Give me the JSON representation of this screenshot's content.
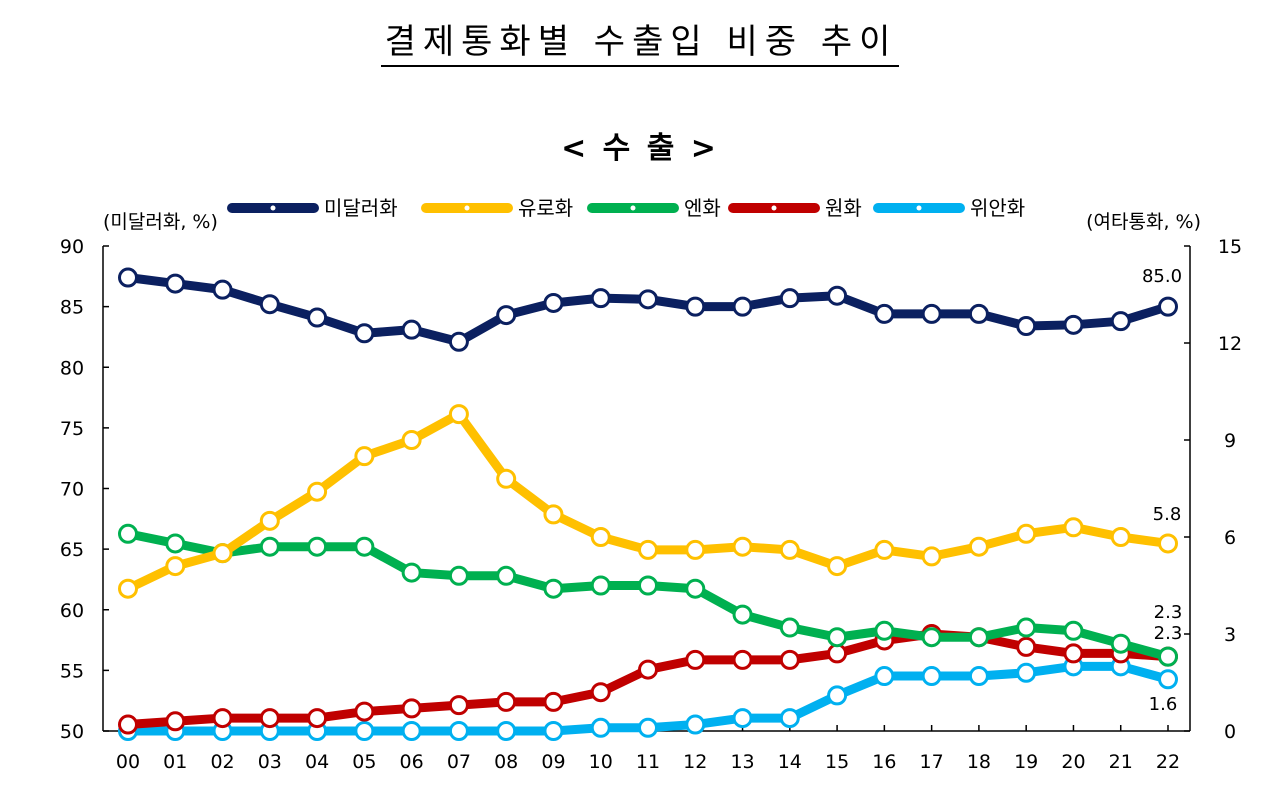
{
  "title": "결제통화별 수출입 비중 추이",
  "subtitle": "< 수   출 >",
  "chart_data": {
    "type": "line",
    "categories": [
      "00",
      "01",
      "02",
      "03",
      "04",
      "05",
      "06",
      "07",
      "08",
      "09",
      "10",
      "11",
      "12",
      "13",
      "14",
      "15",
      "16",
      "17",
      "18",
      "19",
      "20",
      "21",
      "22"
    ],
    "left_axis": {
      "label": "(미달러화, %)",
      "ylim": [
        50,
        90
      ],
      "ticks": [
        50,
        55,
        60,
        65,
        70,
        75,
        80,
        85,
        90
      ]
    },
    "right_axis": {
      "label": "(여타통화, %)",
      "ylim": [
        0,
        15
      ],
      "ticks": [
        0,
        3,
        6,
        9,
        12,
        15
      ]
    },
    "legend_position": "top-center",
    "grid": false,
    "series": [
      {
        "name": "미달러화",
        "axis": "left",
        "color": "#0b2060",
        "values": [
          87.4,
          86.9,
          86.4,
          85.2,
          84.1,
          82.8,
          83.1,
          82.1,
          84.3,
          85.3,
          85.7,
          85.6,
          85.0,
          85.0,
          85.7,
          85.9,
          84.4,
          84.4,
          84.4,
          83.4,
          83.5,
          83.8,
          85.0
        ],
        "end_label": "85.0"
      },
      {
        "name": "유로화",
        "axis": "right",
        "color": "#ffc000",
        "values": [
          4.4,
          5.1,
          5.5,
          6.5,
          7.4,
          8.5,
          9.0,
          9.8,
          7.8,
          6.7,
          6.0,
          5.6,
          5.6,
          5.7,
          5.6,
          5.1,
          5.6,
          5.4,
          5.7,
          6.1,
          6.3,
          6.0,
          5.8
        ],
        "end_label": "5.8"
      },
      {
        "name": "엔화",
        "axis": "right",
        "color": "#00b050",
        "values": [
          6.1,
          5.8,
          5.5,
          5.7,
          5.7,
          5.7,
          4.9,
          4.8,
          4.8,
          4.4,
          4.5,
          4.5,
          4.4,
          3.6,
          3.2,
          2.9,
          3.1,
          2.9,
          2.9,
          3.2,
          3.1,
          2.7,
          2.3
        ],
        "end_label": "2.3"
      },
      {
        "name": "원화",
        "axis": "right",
        "color": "#c00000",
        "values": [
          0.2,
          0.3,
          0.4,
          0.4,
          0.4,
          0.6,
          0.7,
          0.8,
          0.9,
          0.9,
          1.2,
          1.9,
          2.2,
          2.2,
          2.2,
          2.4,
          2.8,
          3.0,
          2.9,
          2.6,
          2.4,
          2.4,
          2.3
        ],
        "end_label": "2.3"
      },
      {
        "name": "위안화",
        "axis": "right",
        "color": "#00b0f0",
        "values": [
          0.0,
          0.0,
          0.0,
          0.0,
          0.0,
          0.0,
          0.0,
          0.0,
          0.0,
          0.0,
          0.1,
          0.1,
          0.2,
          0.4,
          0.4,
          1.1,
          1.7,
          1.7,
          1.7,
          1.8,
          2.0,
          2.0,
          1.6
        ],
        "end_label": "1.6"
      }
    ]
  }
}
